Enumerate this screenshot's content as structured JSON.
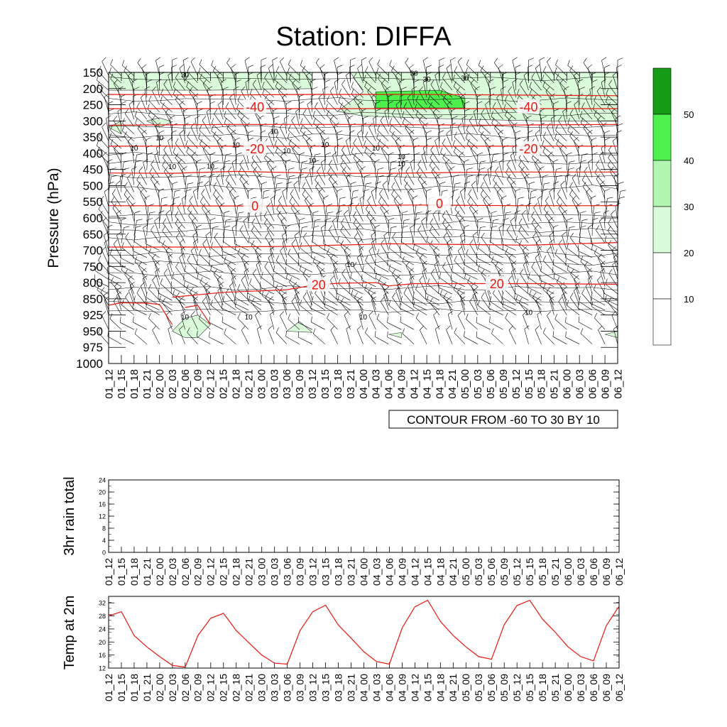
{
  "title": "Station: DIFFA",
  "time_labels": [
    "01_12",
    "01_15",
    "01_18",
    "01_21",
    "02_00",
    "02_03",
    "02_06",
    "02_09",
    "02_12",
    "02_15",
    "02_18",
    "02_21",
    "03_00",
    "03_03",
    "03_06",
    "03_09",
    "03_12",
    "03_15",
    "03_18",
    "03_21",
    "04_00",
    "04_03",
    "04_06",
    "04_09",
    "04_12",
    "04_15",
    "04_18",
    "04_21",
    "05_00",
    "05_03",
    "05_06",
    "05_09",
    "05_12",
    "05_15",
    "05_18",
    "05_21",
    "06_00",
    "06_03",
    "06_06",
    "06_09",
    "06_12"
  ],
  "colors": {
    "temp_contour": "#e8170f",
    "rh_shade_low": "#d9fbd9",
    "rh_shade_mid": "#b3f5b3",
    "rh_shade_high": "#4df04d",
    "rh_shade_top": "#169c16",
    "line": "#000000"
  },
  "chart_data": [
    {
      "name": "upper-air-cross-section",
      "type": "heatmap",
      "ylabel": "Pressure (hPa)",
      "y_ticks": [
        "150",
        "200",
        "250",
        "300",
        "350",
        "400",
        "450",
        "500",
        "550",
        "600",
        "650",
        "700",
        "750",
        "800",
        "850",
        "925",
        "950",
        "975",
        "1000"
      ],
      "ylim": [
        1000,
        150
      ],
      "contour_note": "CONTOUR FROM -60 TO 30 BY 10",
      "temp_contour_labels": [
        {
          "text": "-40",
          "t": 11.5,
          "p": 255
        },
        {
          "text": "-40",
          "t": 33.0,
          "p": 255
        },
        {
          "text": "-20",
          "t": 11.5,
          "p": 385
        },
        {
          "text": "-20",
          "t": 33.0,
          "p": 385
        },
        {
          "text": "0",
          "t": 11.5,
          "p": 562
        },
        {
          "text": "0",
          "t": 26.0,
          "p": 554
        },
        {
          "text": "20",
          "t": 16.5,
          "p": 805
        },
        {
          "text": "20",
          "t": 30.5,
          "p": 802
        }
      ],
      "temp_contours": [
        {
          "level": -50,
          "points": [
            [
              0,
              218
            ],
            [
              8,
              220
            ],
            [
              16,
              218
            ],
            [
              24,
              218
            ],
            [
              32,
              220
            ],
            [
              40,
              222
            ]
          ]
        },
        {
          "level": -40,
          "points": [
            [
              0,
              262
            ],
            [
              8,
              262
            ],
            [
              16,
              262
            ],
            [
              24,
              262
            ],
            [
              32,
              262
            ],
            [
              40,
              262
            ]
          ]
        },
        {
          "level": -30,
          "points": [
            [
              0,
              313
            ],
            [
              10,
              311
            ],
            [
              20,
              311
            ],
            [
              30,
              313
            ],
            [
              40,
              311
            ]
          ]
        },
        {
          "level": -20,
          "points": [
            [
              0,
              378
            ],
            [
              8,
              378
            ],
            [
              16,
              378
            ],
            [
              24,
              378
            ],
            [
              32,
              378
            ],
            [
              40,
              378
            ]
          ]
        },
        {
          "level": -10,
          "points": [
            [
              0,
              461
            ],
            [
              5,
              462
            ],
            [
              10,
              456
            ],
            [
              17,
              462
            ],
            [
              22,
              462
            ],
            [
              30,
              458
            ],
            [
              40,
              458
            ]
          ]
        },
        {
          "level": 0,
          "points": [
            [
              0,
              562
            ],
            [
              8,
              563
            ],
            [
              16,
              563
            ],
            [
              24,
              560
            ],
            [
              32,
              562
            ],
            [
              40,
              562
            ]
          ]
        },
        {
          "level": 10,
          "points": [
            [
              0,
              690
            ],
            [
              8,
              690
            ],
            [
              14,
              688
            ],
            [
              22,
              680
            ],
            [
              28,
              682
            ],
            [
              33,
              684
            ],
            [
              40,
              676
            ]
          ]
        },
        {
          "level": 20,
          "points": [
            [
              5,
              845
            ],
            [
              9,
              830
            ],
            [
              14,
              822
            ],
            [
              16,
              808
            ],
            [
              18,
              802
            ],
            [
              21,
              800
            ],
            [
              22,
              810
            ],
            [
              24,
              803
            ],
            [
              28,
              803
            ],
            [
              33,
              803
            ],
            [
              40,
              805
            ]
          ]
        },
        {
          "level": 30,
          "points": [
            [
              0,
              880
            ],
            [
              1,
              868
            ],
            [
              3,
              870
            ],
            [
              4,
              876
            ],
            [
              5,
              940
            ]
          ]
        },
        {
          "level": 30,
          "points": [
            [
              6,
              890
            ],
            [
              7,
              880
            ],
            [
              8,
              940
            ]
          ]
        }
      ],
      "rh_contour_labels": [
        "10",
        "30"
      ],
      "rh_shaded_regions": [
        {
          "level": 20,
          "points": [
            [
              0,
              150
            ],
            [
              8,
              150
            ],
            [
              16,
              150
            ],
            [
              16,
              200
            ],
            [
              8,
              205
            ],
            [
              0,
              205
            ]
          ]
        },
        {
          "level": 20,
          "points": [
            [
              19,
              150
            ],
            [
              40,
              150
            ],
            [
              40,
              300
            ],
            [
              34,
              300
            ],
            [
              28,
              295
            ],
            [
              24,
              290
            ],
            [
              20,
              285
            ],
            [
              18,
              270
            ],
            [
              19,
              240
            ],
            [
              20,
              210
            ]
          ]
        },
        {
          "level": 20,
          "points": [
            [
              0,
              320
            ],
            [
              1,
              300
            ],
            [
              1,
              340
            ]
          ]
        },
        {
          "level": 20,
          "points": [
            [
              3,
              300
            ],
            [
              4,
              290
            ],
            [
              5,
              303
            ],
            [
              4,
              320
            ]
          ]
        },
        {
          "level": 20,
          "points": [
            [
              5,
              950
            ],
            [
              6,
              930
            ],
            [
              7,
              925
            ],
            [
              8,
              940
            ],
            [
              7,
              960
            ],
            [
              6,
              960
            ]
          ]
        },
        {
          "level": 20,
          "points": [
            [
              14,
              950
            ],
            [
              15,
              935
            ],
            [
              16,
              952
            ]
          ]
        },
        {
          "level": 20,
          "points": [
            [
              22,
              955
            ],
            [
              23,
              952
            ],
            [
              23,
              960
            ]
          ]
        },
        {
          "level": 20,
          "points": [
            [
              39,
              955
            ],
            [
              40,
              950
            ],
            [
              40,
              960
            ]
          ]
        },
        {
          "level": 40,
          "points": [
            [
              21,
              210
            ],
            [
              26,
              205
            ],
            [
              28,
              230
            ],
            [
              28,
              260
            ],
            [
              21,
              260
            ]
          ]
        }
      ],
      "colorbar_levels": [
        "10",
        "20",
        "30",
        "40",
        "50"
      ]
    },
    {
      "name": "rain-panel",
      "type": "line",
      "ylabel": "3hr rain total",
      "y_ticks": [
        "0",
        "4",
        "8",
        "12",
        "16",
        "20",
        "24"
      ],
      "ylim": [
        0,
        24
      ],
      "values": []
    },
    {
      "name": "temperature-panel",
      "type": "line",
      "ylabel": "Temp at 2m",
      "y_ticks": [
        "12",
        "16",
        "20",
        "24",
        "28",
        "32"
      ],
      "ylim": [
        12,
        34
      ],
      "values": [
        28.0,
        29.3,
        22.0,
        18.5,
        15.5,
        12.8,
        12.3,
        22.0,
        27.3,
        28.8,
        23.5,
        19.7,
        16.0,
        13.5,
        13.2,
        23.5,
        29.3,
        31.3,
        25.2,
        21.2,
        17.0,
        14.0,
        13.2,
        24.3,
        30.8,
        32.8,
        26.3,
        22.0,
        18.5,
        15.5,
        14.7,
        25.3,
        31.2,
        32.8,
        27.0,
        23.0,
        18.5,
        15.5,
        14.2,
        25.0,
        31.0
      ]
    }
  ]
}
